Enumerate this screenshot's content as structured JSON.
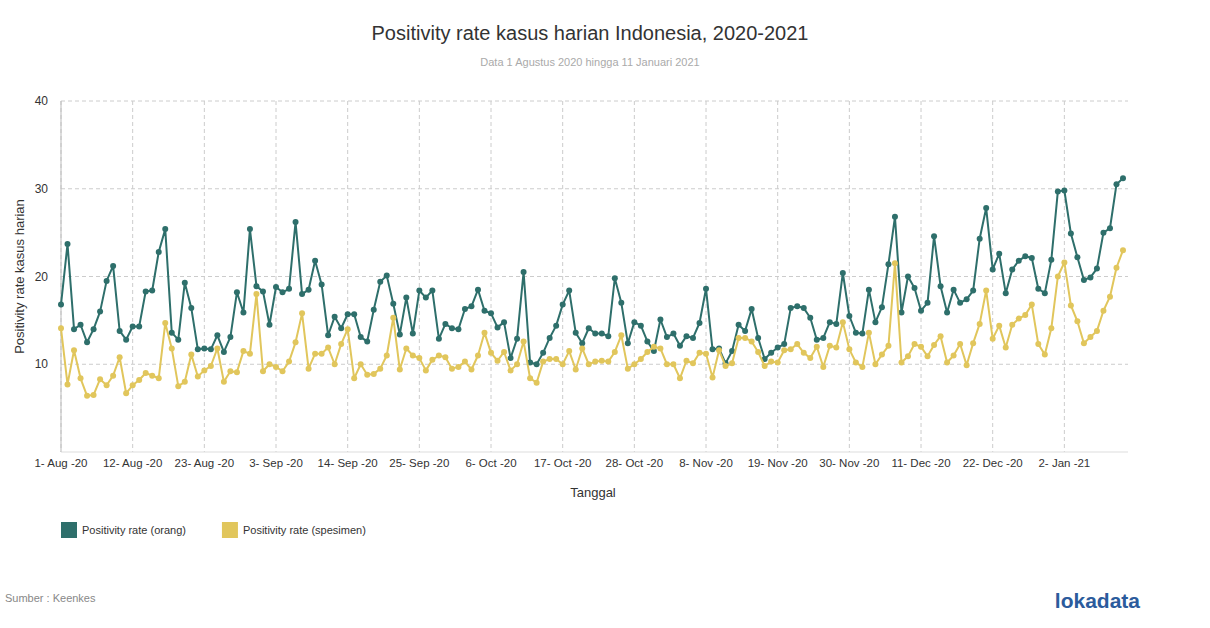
{
  "chart_data": {
    "type": "line",
    "title": "Positivity rate kasus harian Indonesia, 2020-2021",
    "subtitle": "Data 1 Agustus 2020 hingga 11 Januari 2021",
    "x_label": "Tanggal",
    "y_label": "Positivity rate kasus harian",
    "source": "Sumber : Keenkes",
    "logo_text": "lokadata",
    "categories": [
      "1- Aug -20",
      null,
      null,
      null,
      null,
      null,
      null,
      null,
      null,
      null,
      null,
      "12- Aug -20",
      null,
      null,
      null,
      null,
      null,
      null,
      null,
      null,
      null,
      null,
      "23- Aug -20",
      null,
      null,
      null,
      null,
      null,
      null,
      null,
      null,
      null,
      null,
      "3- Sep -20",
      null,
      null,
      null,
      null,
      null,
      null,
      null,
      null,
      null,
      null,
      "14- Sep -20",
      null,
      null,
      null,
      null,
      null,
      null,
      null,
      null,
      null,
      null,
      "25- Sep -20",
      null,
      null,
      null,
      null,
      null,
      null,
      null,
      null,
      null,
      null,
      "6- Oct -20",
      null,
      null,
      null,
      null,
      null,
      null,
      null,
      null,
      null,
      null,
      "17- Oct -20",
      null,
      null,
      null,
      null,
      null,
      null,
      null,
      null,
      null,
      null,
      "28- Oct -20",
      null,
      null,
      null,
      null,
      null,
      null,
      null,
      null,
      null,
      null,
      "8- Nov -20",
      null,
      null,
      null,
      null,
      null,
      null,
      null,
      null,
      null,
      null,
      "19- Nov -20",
      null,
      null,
      null,
      null,
      null,
      null,
      null,
      null,
      null,
      null,
      "30- Nov -20",
      null,
      null,
      null,
      null,
      null,
      null,
      null,
      null,
      null,
      null,
      "11- Dec -20",
      null,
      null,
      null,
      null,
      null,
      null,
      null,
      null,
      null,
      null,
      "22- Dec -20",
      null,
      null,
      null,
      null,
      null,
      null,
      null,
      null,
      null,
      null,
      "2- Jan -21",
      null,
      null,
      null,
      null,
      null,
      null,
      null,
      null,
      null
    ],
    "series": [
      {
        "name": "Positivity rate (orang)",
        "color": "#2e6f6b",
        "marker": "circle",
        "line_style": "solid",
        "values": [
          16.8,
          23.7,
          14.0,
          14.5,
          12.5,
          14.0,
          16.0,
          19.5,
          21.2,
          13.8,
          12.8,
          14.3,
          14.3,
          18.3,
          18.4,
          22.8,
          25.4,
          13.6,
          12.8,
          19.3,
          16.4,
          11.7,
          11.8,
          11.7,
          13.3,
          11.4,
          13.1,
          18.2,
          15.9,
          25.4,
          18.9,
          18.3,
          14.5,
          18.8,
          18.2,
          18.6,
          26.2,
          18.0,
          18.5,
          21.8,
          19.1,
          13.3,
          15.4,
          14.1,
          15.7,
          15.7,
          13.1,
          12.6,
          16.2,
          19.4,
          20.1,
          16.9,
          13.4,
          17.6,
          13.5,
          18.4,
          17.6,
          18.4,
          12.9,
          14.6,
          14.1,
          14.0,
          16.3,
          16.6,
          18.5,
          16.1,
          15.8,
          14.2,
          14.8,
          10.7,
          12.9,
          20.5,
          10.2,
          10.0,
          11.3,
          13.0,
          14.4,
          16.8,
          18.4,
          13.6,
          12.4,
          14.1,
          13.5,
          13.5,
          13.2,
          19.8,
          17.0,
          12.4,
          14.8,
          14.4,
          12.6,
          11.5,
          15.1,
          13.1,
          13.5,
          12.1,
          13.2,
          13.0,
          14.7,
          18.6,
          11.7,
          11.8,
          10.1,
          11.5,
          14.5,
          13.8,
          16.3,
          13.0,
          10.6,
          11.3,
          11.9,
          12.3,
          16.4,
          16.6,
          16.4,
          15.3,
          12.8,
          13.0,
          14.8,
          14.6,
          20.4,
          15.5,
          13.6,
          13.5,
          18.5,
          14.8,
          16.5,
          21.4,
          26.8,
          15.9,
          20.0,
          18.7,
          16.1,
          17.0,
          24.6,
          18.9,
          15.9,
          18.5,
          17.0,
          17.4,
          18.4,
          24.3,
          27.8,
          20.8,
          22.6,
          18.1,
          20.8,
          21.8,
          22.3,
          22.1,
          18.6,
          18.1,
          21.9,
          29.7,
          29.8,
          24.9,
          22.2,
          19.6,
          19.9,
          20.9,
          25.0,
          25.5,
          30.5,
          31.2
        ]
      },
      {
        "name": "Positivity rate (spesimen)",
        "color": "#e1c65c",
        "marker": "circle",
        "line_style": "solid",
        "values": [
          14.1,
          7.7,
          11.6,
          8.4,
          6.4,
          6.5,
          8.3,
          7.6,
          8.7,
          10.8,
          6.7,
          7.6,
          8.2,
          9.0,
          8.7,
          8.4,
          14.7,
          11.8,
          7.5,
          8.0,
          11.1,
          8.6,
          9.3,
          9.8,
          11.8,
          8.0,
          9.2,
          9.1,
          11.5,
          11.2,
          18.0,
          9.2,
          10.0,
          9.7,
          9.2,
          10.3,
          12.5,
          15.8,
          9.5,
          11.2,
          11.2,
          11.9,
          10.0,
          12.3,
          14.0,
          8.4,
          10.0,
          8.8,
          8.9,
          9.5,
          11.0,
          15.3,
          9.4,
          11.8,
          11.0,
          10.7,
          9.3,
          10.5,
          11.0,
          10.8,
          9.5,
          9.7,
          10.3,
          9.4,
          11.0,
          13.6,
          11.3,
          10.4,
          11.4,
          9.3,
          10.0,
          12.6,
          8.4,
          7.9,
          10.3,
          10.6,
          10.6,
          10.0,
          11.5,
          9.4,
          11.8,
          10.0,
          10.3,
          10.4,
          10.3,
          11.4,
          13.3,
          9.5,
          10.0,
          10.6,
          11.4,
          12.0,
          11.8,
          10.0,
          10.0,
          8.4,
          10.4,
          10.1,
          11.3,
          11.2,
          8.5,
          11.6,
          9.8,
          10.1,
          13.0,
          13.0,
          12.6,
          11.4,
          9.8,
          10.3,
          10.2,
          11.6,
          11.7,
          12.3,
          11.3,
          10.7,
          12.0,
          9.7,
          12.1,
          11.9,
          14.8,
          11.7,
          10.2,
          9.7,
          13.6,
          10.0,
          11.1,
          12.1,
          21.5,
          10.2,
          10.9,
          12.3,
          12.0,
          10.9,
          12.2,
          13.2,
          10.2,
          11.0,
          12.3,
          9.9,
          12.4,
          14.6,
          18.4,
          12.9,
          14.4,
          11.9,
          14.5,
          15.2,
          15.6,
          16.8,
          12.3,
          11.1,
          14.1,
          20.0,
          21.6,
          16.7,
          14.9,
          12.4,
          13.1,
          13.8,
          16.1,
          17.7,
          21.0,
          23.0
        ]
      }
    ],
    "ylim": [
      0,
      40
    ],
    "yticks": [
      10,
      20,
      30,
      40
    ],
    "grid": true,
    "legend": "bottom-left"
  }
}
